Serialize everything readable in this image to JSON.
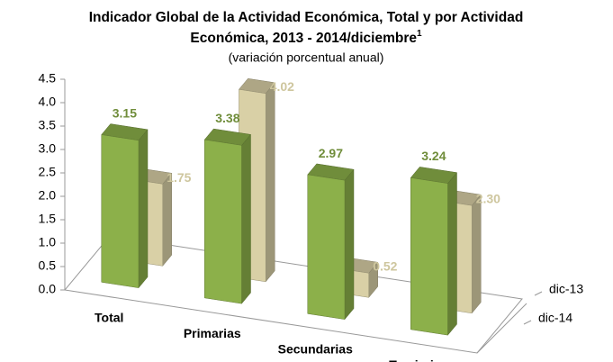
{
  "chart_data": {
    "type": "bar3d",
    "title": "Indicador Global de la Actividad Económica, Total y por Actividad",
    "title_line2": "Económica, 2013 - 2014/diciembre",
    "title_superscript": "1",
    "subtitle": "(variación porcentual anual)",
    "categories": [
      "Total",
      "Primarias",
      "Secundarias",
      "Terciarias"
    ],
    "series": [
      {
        "name": "dic-14",
        "color": "#8cb04a",
        "values": [
          3.15,
          3.38,
          2.97,
          3.24
        ]
      },
      {
        "name": "dic-13",
        "color": "#d9d0a6",
        "values": [
          1.75,
          4.02,
          0.52,
          2.3
        ],
        "value_labels": [
          "1.75",
          "4.02",
          "0.52",
          "2.30"
        ]
      }
    ],
    "ylim": [
      0,
      4.5
    ],
    "yticks": [
      {
        "value": 0,
        "label": "0.0"
      },
      0.5,
      {
        "value": 1,
        "label": "1.0"
      },
      1.5,
      {
        "value": 2,
        "label": "2.0"
      },
      2.5,
      {
        "value": 3,
        "label": "3.0"
      },
      3.5,
      {
        "value": 4,
        "label": "4.0"
      },
      4.5
    ]
  }
}
